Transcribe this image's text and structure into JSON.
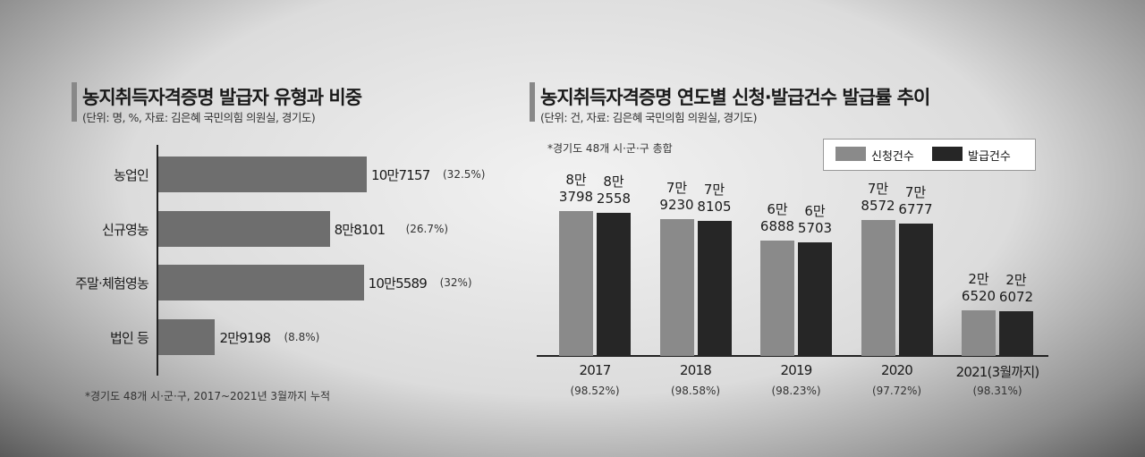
{
  "chart_data": [
    {
      "type": "hbar",
      "title": "농지취득자격증명 발급자 유형과 비중",
      "subtitle": "(단위: 명, %, 자료: 김은혜 국민의힘 의원실, 경기도)",
      "note": "*경기도 48개 시·군·구, 2017~2021년 3월까지 누적",
      "categories": [
        "농업인",
        "신규영농",
        "주말·체험영농",
        "법인 등"
      ],
      "values": [
        107157,
        88101,
        105589,
        29198
      ],
      "value_labels": [
        "10만7157",
        "8만8101",
        "10만5589",
        "2만9198"
      ],
      "shares": {
        "values": [
          32.5,
          26.7,
          32,
          8.8
        ],
        "value_labels": [
          "(32.5%)",
          "(26.7%)",
          "(32%)",
          "(8.8%)"
        ]
      },
      "color": "#6e6e6e"
    },
    {
      "type": "bar",
      "title": "농지취득자격증명 연도별 신청·발급건수 발급률 추이",
      "subtitle": "(단위: 건, 자료: 김은혜 국민의힘 의원실, 경기도)",
      "note": "*경기도 48개 시·군·구 총합",
      "categories": [
        "2017",
        "2018",
        "2019",
        "2020",
        "2021(3월까지)"
      ],
      "rates": {
        "values": [
          98.52,
          98.58,
          98.23,
          97.72,
          98.31
        ],
        "value_labels": [
          "(98.52%)",
          "(98.58%)",
          "(98.23%)",
          "(97.72%)",
          "(98.31%)"
        ]
      },
      "series": [
        {
          "name": "신청건수",
          "color": "#8a8a8a",
          "values": [
            83798,
            79230,
            66888,
            78572,
            26520
          ],
          "value_labels": [
            "8만\n3798",
            "7만\n9230",
            "6만\n6888",
            "7만\n8572",
            "2만\n6520"
          ]
        },
        {
          "name": "발급건수",
          "color": "#262626",
          "values": [
            82558,
            78105,
            65703,
            76777,
            26072
          ],
          "value_labels": [
            "8만\n2558",
            "7만\n8105",
            "6만\n5703",
            "7만\n6777",
            "2만\n6072"
          ]
        }
      ],
      "legend": "top-right"
    }
  ]
}
